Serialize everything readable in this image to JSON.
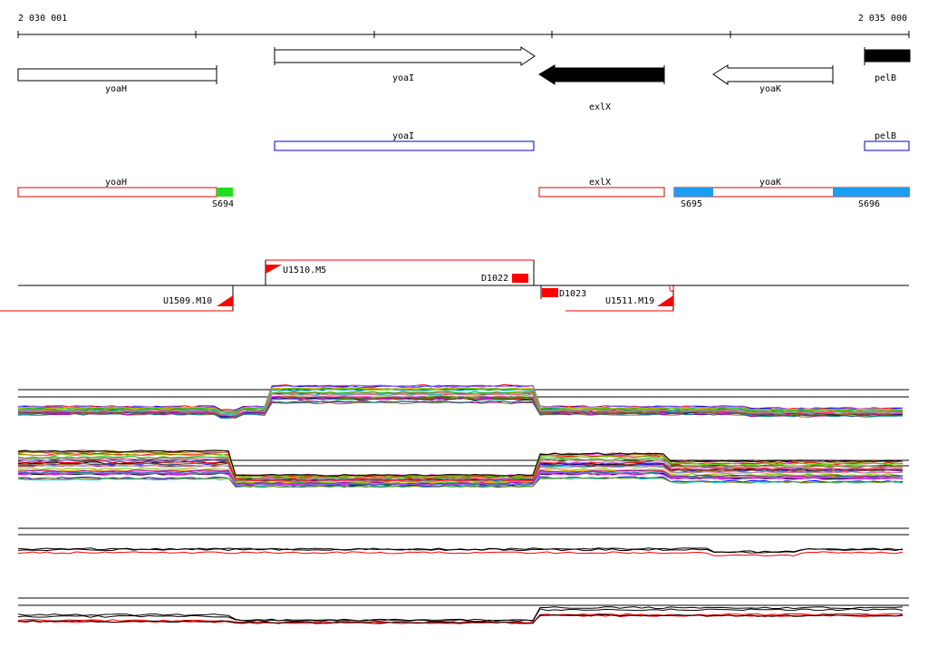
{
  "ruler": {
    "start_label": "2 030 001",
    "end_label": "2 035 000"
  },
  "genes": [
    {
      "name": "yoaH",
      "strand": "none",
      "fill": "#ffffff"
    },
    {
      "name": "yoaI",
      "strand": "forward",
      "fill": "#ffffff"
    },
    {
      "name": "exlX",
      "strand": "reverse",
      "fill": "#000000"
    },
    {
      "name": "yoaK",
      "strand": "reverse",
      "fill": "#ffffff"
    },
    {
      "name": "pelB",
      "strand": "none",
      "fill": "#000000"
    }
  ],
  "blue_track": [
    {
      "label": "yoaI"
    },
    {
      "label": "pelB"
    }
  ],
  "red_track": [
    {
      "label": "yoaH"
    },
    {
      "label": "exlX"
    },
    {
      "label": "yoaK"
    }
  ],
  "red_track_markers": [
    {
      "label": "S694",
      "color": "#22dd22"
    },
    {
      "label": "S695",
      "color": "#1a9ff0"
    },
    {
      "label": "S696",
      "color": "#1a9ff0"
    }
  ],
  "transcripts": [
    {
      "label": "U1510.M5"
    },
    {
      "label": "D1022"
    },
    {
      "label": "U1509.M10"
    },
    {
      "label": "D1023"
    },
    {
      "label": "U1511.M19"
    }
  ],
  "colors": {
    "red": "#ff0000",
    "blue": "#0000cc",
    "line_palette": [
      "#000000",
      "#ff0000",
      "#00aa00",
      "#0000ff",
      "#ff00ff",
      "#00cccc",
      "#ffaa00",
      "#888800",
      "#aa00aa",
      "#008888",
      "#ff6699",
      "#66cc00",
      "#9966ff",
      "#996633"
    ]
  }
}
